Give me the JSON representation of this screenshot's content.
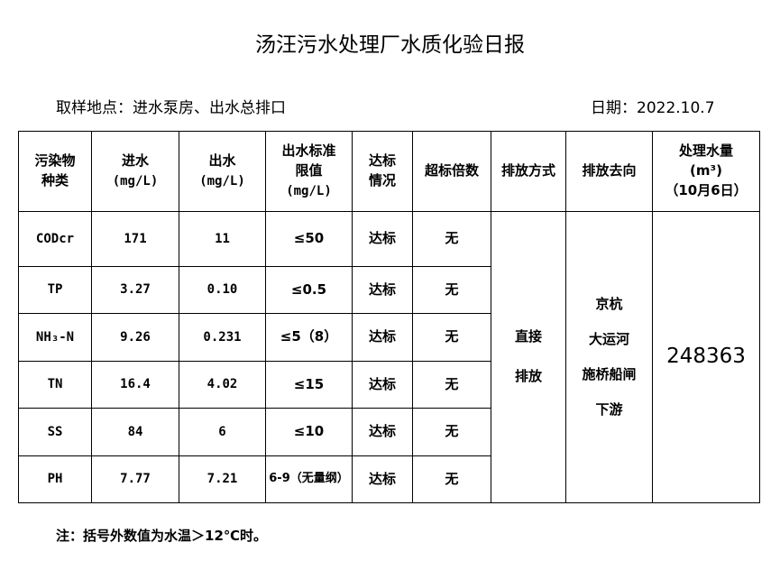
{
  "title": "汤汪污水处理厂水质化验日报",
  "location": "取样地点：进水泵房、出水总排口",
  "date": "日期：2022.10.7",
  "headers": {
    "pollutant": [
      "污染物",
      "种类"
    ],
    "influent": [
      "进水",
      "(mg/L)"
    ],
    "effluent": [
      "出水",
      "(mg/L)"
    ],
    "limit": [
      "出水标准",
      "限值",
      "(mg/L)"
    ],
    "status": [
      "达标",
      "情况"
    ],
    "exceed": "超标倍数",
    "discharge_method": "排放方式",
    "discharge_dest": "排放去向",
    "volume": [
      "处理水量",
      "(m³)",
      "（10月6日）"
    ]
  },
  "rows": [
    {
      "name": "CODcr",
      "in": "171",
      "out": "11",
      "limit": "≤50",
      "status": "达标",
      "exceed": "无"
    },
    {
      "name": "TP",
      "in": "3.27",
      "out": "0.10",
      "limit": "≤0.5",
      "status": "达标",
      "exceed": "无"
    },
    {
      "name": "NH₃-N",
      "in": "9.26",
      "out": "0.231",
      "limit": "≤5（8）",
      "status": "达标",
      "exceed": "无"
    },
    {
      "name": "TN",
      "in": "16.4",
      "out": "4.02",
      "limit": "≤15",
      "status": "达标",
      "exceed": "无"
    },
    {
      "name": "SS",
      "in": "84",
      "out": "6",
      "limit": "≤10",
      "status": "达标",
      "exceed": "无"
    },
    {
      "name": "PH",
      "in": "7.77",
      "out": "7.21",
      "limit": "6-9（无量纲）",
      "status": "达标",
      "exceed": "无"
    }
  ],
  "discharge_method": [
    "直接",
    "排放"
  ],
  "discharge_dest": [
    "京杭",
    "大运河",
    "施桥船闸",
    "下游"
  ],
  "volume": "248363",
  "note": "注：括号外数值为水温＞12℃时。"
}
